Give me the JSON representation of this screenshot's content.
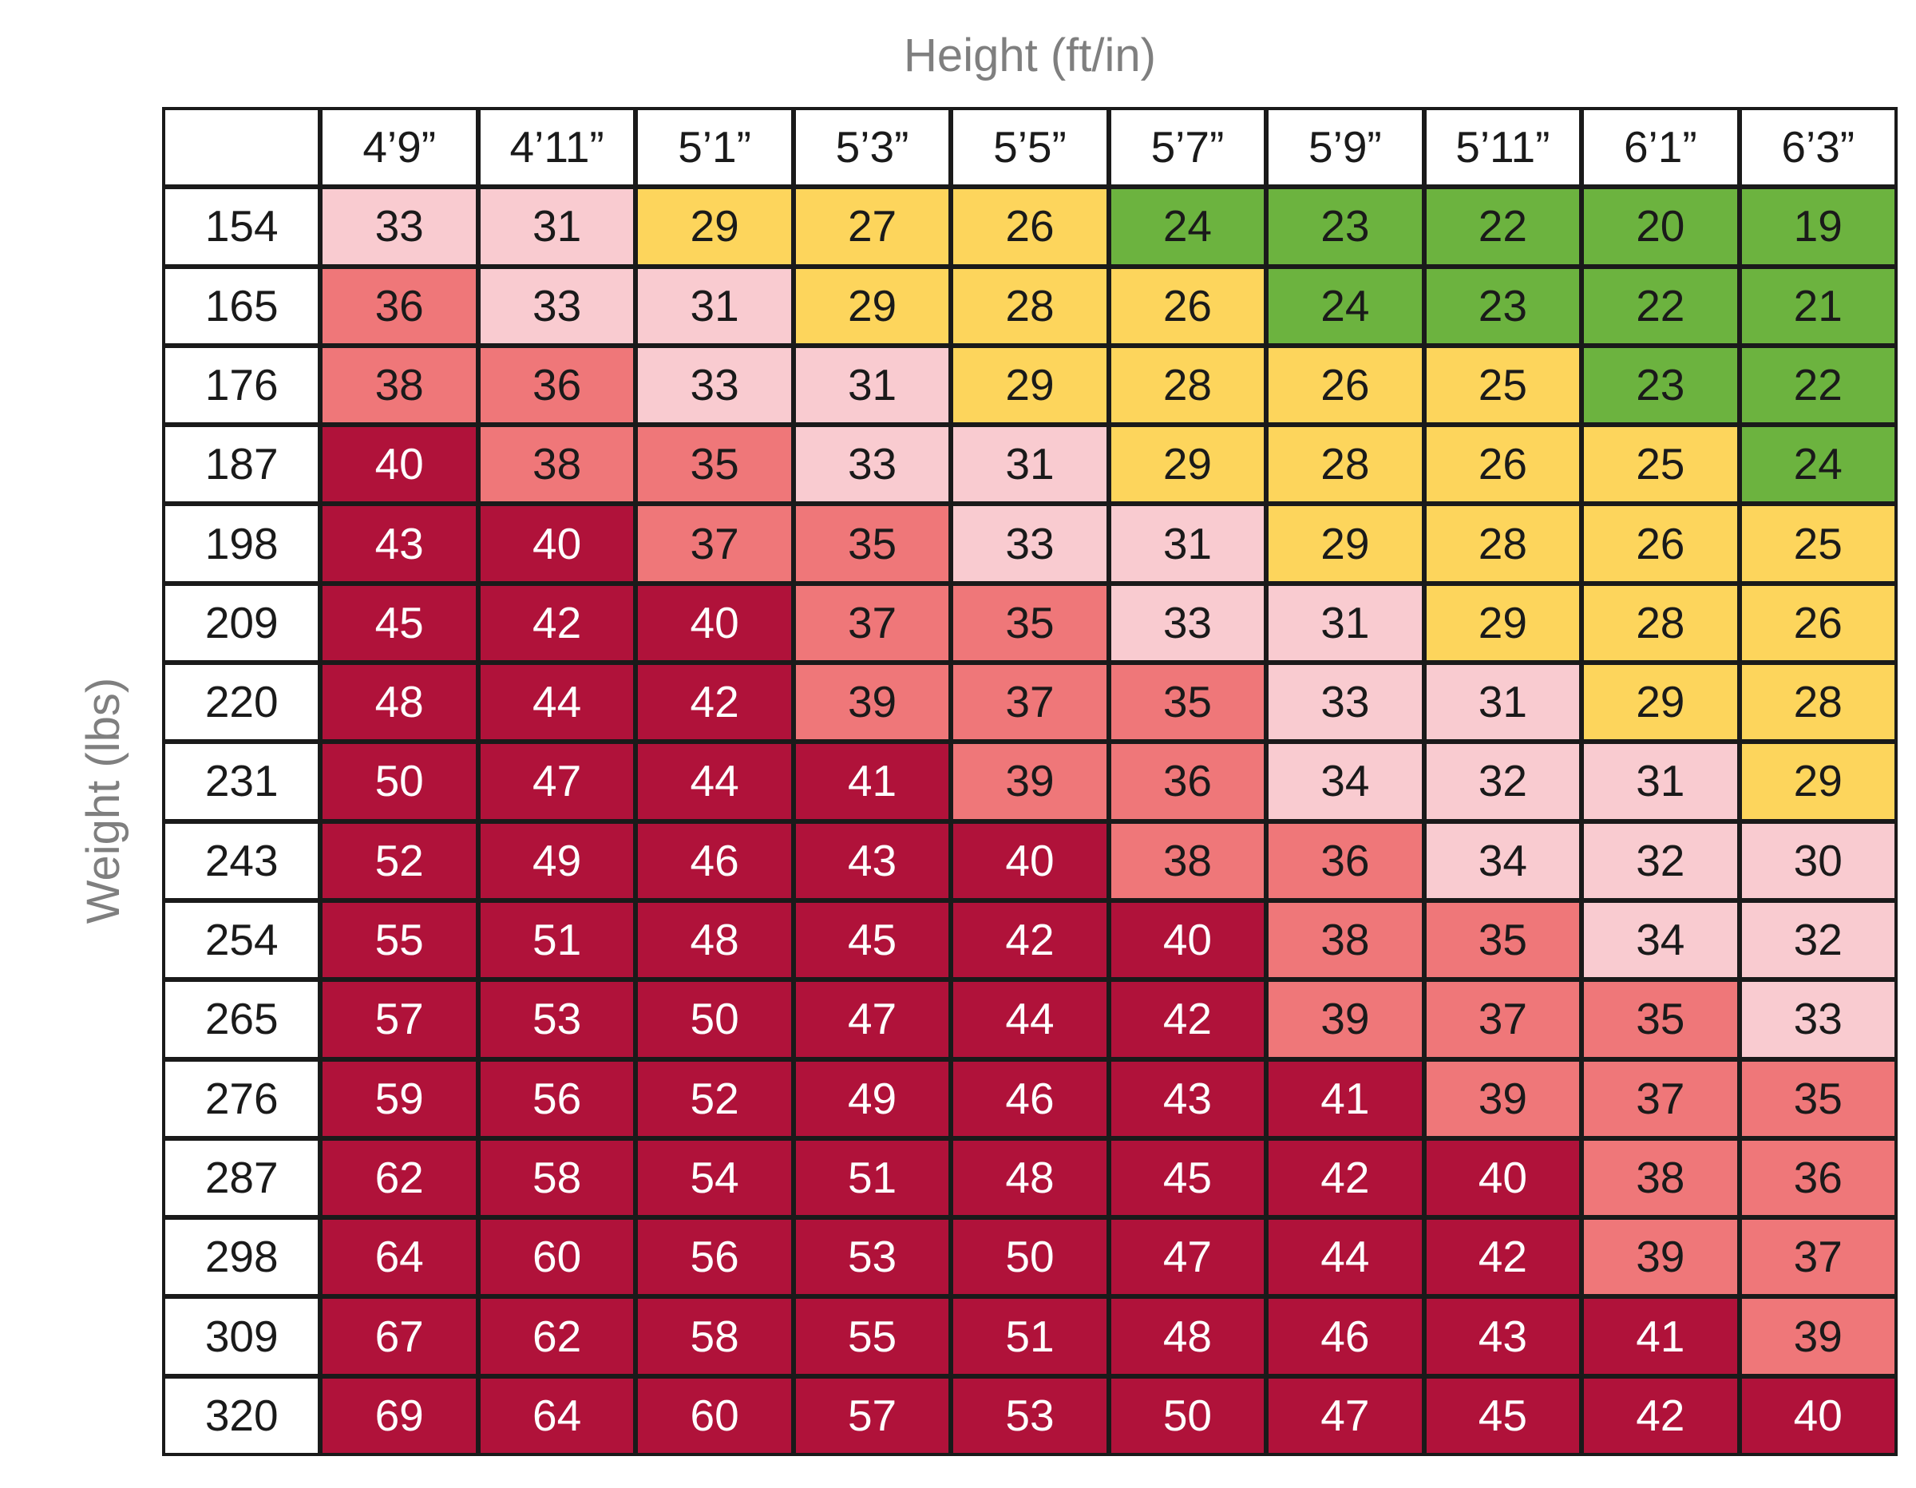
{
  "chart_data": {
    "type": "heatmap",
    "title": "",
    "xlabel": "Height (ft/in)",
    "ylabel": "Weight (lbs)",
    "x_categories": [
      "4’9”",
      "4’11”",
      "5’1”",
      "5’3”",
      "5’5”",
      "5’7”",
      "5’9”",
      "5’11”",
      "6’1”",
      "6’3”"
    ],
    "y_categories": [
      "154",
      "165",
      "176",
      "187",
      "198",
      "209",
      "220",
      "231",
      "243",
      "254",
      "265",
      "276",
      "287",
      "298",
      "309",
      "320"
    ],
    "values": [
      [
        33,
        31,
        29,
        27,
        26,
        24,
        23,
        22,
        20,
        19
      ],
      [
        36,
        33,
        31,
        29,
        28,
        26,
        24,
        23,
        22,
        21
      ],
      [
        38,
        36,
        33,
        31,
        29,
        28,
        26,
        25,
        23,
        22
      ],
      [
        40,
        38,
        35,
        33,
        31,
        29,
        28,
        26,
        25,
        24
      ],
      [
        43,
        40,
        37,
        35,
        33,
        31,
        29,
        28,
        26,
        25
      ],
      [
        45,
        42,
        40,
        37,
        35,
        33,
        31,
        29,
        28,
        26
      ],
      [
        48,
        44,
        42,
        39,
        37,
        35,
        33,
        31,
        29,
        28
      ],
      [
        50,
        47,
        44,
        41,
        39,
        36,
        34,
        32,
        31,
        29
      ],
      [
        52,
        49,
        46,
        43,
        40,
        38,
        36,
        34,
        32,
        30
      ],
      [
        55,
        51,
        48,
        45,
        42,
        40,
        38,
        35,
        34,
        32
      ],
      [
        57,
        53,
        50,
        47,
        44,
        42,
        39,
        37,
        35,
        33
      ],
      [
        59,
        56,
        52,
        49,
        46,
        43,
        41,
        39,
        37,
        35
      ],
      [
        62,
        58,
        54,
        51,
        48,
        45,
        42,
        40,
        38,
        36
      ],
      [
        64,
        60,
        56,
        53,
        50,
        47,
        44,
        42,
        39,
        37
      ],
      [
        67,
        62,
        58,
        55,
        51,
        48,
        46,
        43,
        41,
        39
      ],
      [
        69,
        64,
        60,
        57,
        53,
        50,
        47,
        45,
        42,
        40
      ]
    ],
    "color_bands": [
      {
        "max": 24,
        "color": "#6cb33f",
        "text_color": "#1a1a1a"
      },
      {
        "max": 29,
        "color": "#fdd55c",
        "text_color": "#1a1a1a"
      },
      {
        "max": 34,
        "color": "#f9cbd0",
        "text_color": "#1a1a1a"
      },
      {
        "max": 39,
        "color": "#ef7779",
        "text_color": "#1a1a1a"
      },
      {
        "max": 999,
        "color": "#b0123a",
        "text_color": "#ffffff"
      }
    ],
    "grid": true,
    "legend": "none"
  },
  "colors": {
    "axis_title": "#7f7f7f",
    "border": "#1a1a1a",
    "header_bg": "#ffffff"
  }
}
